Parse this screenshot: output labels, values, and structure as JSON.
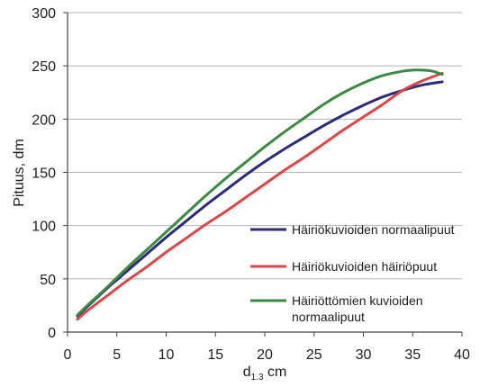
{
  "chart_data": {
    "type": "line",
    "xlabel_main": "d",
    "xlabel_sub": "1.3",
    "xlabel_unit": " cm",
    "ylabel": "Pituus, dm",
    "xlim": [
      0,
      40
    ],
    "ylim": [
      0,
      300
    ],
    "x_ticks": [
      0,
      5,
      10,
      15,
      20,
      25,
      30,
      35,
      40
    ],
    "y_ticks": [
      0,
      50,
      100,
      150,
      200,
      250,
      300
    ],
    "grid": "horizontal",
    "legend_position": "bottom-right",
    "series": [
      {
        "name": "Häiriökuvioiden normaalipuut",
        "color": "#2b2b7a",
        "x": [
          1,
          2,
          4,
          6,
          8,
          10,
          12,
          14,
          16,
          18,
          20,
          22,
          24,
          26,
          28,
          30,
          32,
          34,
          36,
          38
        ],
        "y": [
          15,
          24,
          41,
          57,
          73,
          89,
          104,
          119,
          133,
          147,
          160,
          172,
          183,
          194,
          204,
          213,
          221,
          227,
          232,
          235
        ]
      },
      {
        "name": "Häiriökuvioiden häiriöpuut",
        "color": "#d84848",
        "x": [
          1,
          2,
          4,
          6,
          8,
          10,
          12,
          14,
          16,
          18,
          20,
          22,
          24,
          26,
          28,
          30,
          32,
          34,
          36,
          38
        ],
        "y": [
          12,
          20,
          34,
          48,
          61,
          75,
          88,
          101,
          113,
          126,
          139,
          152,
          164,
          177,
          190,
          202,
          214,
          227,
          236,
          243
        ]
      },
      {
        "name_line1": "Häiriöttömien kuvioiden",
        "name_line2": "normaalipuut",
        "color": "#3a8a42",
        "x": [
          1,
          2,
          4,
          6,
          8,
          10,
          12,
          14,
          16,
          18,
          20,
          22,
          24,
          26,
          28,
          30,
          32,
          34,
          35,
          36,
          37,
          38
        ],
        "y": [
          16,
          25,
          42,
          60,
          77,
          94,
          111,
          128,
          144,
          159,
          174,
          188,
          201,
          214,
          225,
          234,
          241,
          245,
          246,
          246,
          245,
          242
        ]
      }
    ]
  }
}
